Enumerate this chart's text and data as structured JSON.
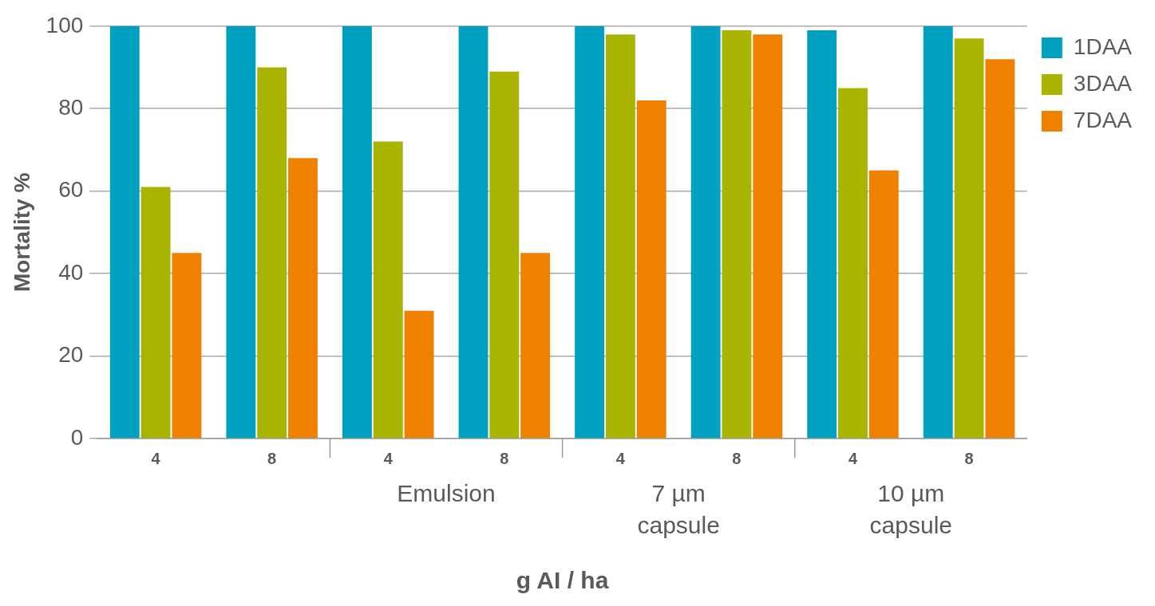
{
  "chart_data": {
    "type": "bar",
    "ylabel": "Mortality %",
    "xlabel": "g AI / ha",
    "categories": [
      "4",
      "8",
      "4",
      "8",
      "4",
      "8",
      "4",
      "8"
    ],
    "annotations": [
      "Emulsion",
      "7 µm capsule",
      "10 µm capsule"
    ],
    "series": [
      {
        "name": "1DAA",
        "color": "#00a0c0",
        "values": [
          100,
          100,
          100,
          100,
          100,
          100,
          99,
          100
        ]
      },
      {
        "name": "3DAA",
        "color": "#a8b400",
        "values": [
          61,
          90,
          72,
          89,
          98,
          99,
          85,
          97
        ]
      },
      {
        "name": "7DAA",
        "color": "#f08000",
        "values": [
          45,
          68,
          31,
          45,
          82,
          98,
          65,
          92
        ]
      }
    ],
    "ylim": [
      0,
      100
    ],
    "yticks": [
      0,
      20,
      40,
      60,
      80,
      100
    ],
    "grid": "y",
    "legend": "top right"
  }
}
